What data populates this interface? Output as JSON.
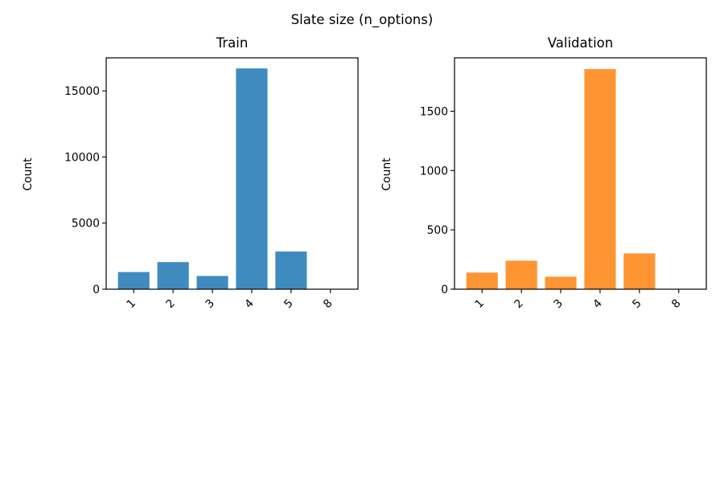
{
  "figure": {
    "title": "Slate size (n_options)"
  },
  "chart_data": [
    {
      "type": "bar",
      "title": "Train",
      "xlabel": "",
      "ylabel": "Count",
      "categories": [
        "1",
        "2",
        "3",
        "4",
        "5",
        "8"
      ],
      "values": [
        1300,
        2050,
        1000,
        16700,
        2850,
        5
      ],
      "yticks": [
        0,
        5000,
        10000,
        15000
      ],
      "ylim": [
        0,
        17500
      ],
      "color": "#3f8bc0",
      "grid": false,
      "legend": "none"
    },
    {
      "type": "bar",
      "title": "Validation",
      "xlabel": "",
      "ylabel": "Count",
      "categories": [
        "1",
        "2",
        "3",
        "4",
        "5",
        "8"
      ],
      "values": [
        140,
        240,
        105,
        1855,
        302,
        1
      ],
      "yticks": [
        0,
        500,
        1000,
        1500
      ],
      "ylim": [
        0,
        1950
      ],
      "color": "#ff9433",
      "grid": false,
      "legend": "none"
    }
  ]
}
